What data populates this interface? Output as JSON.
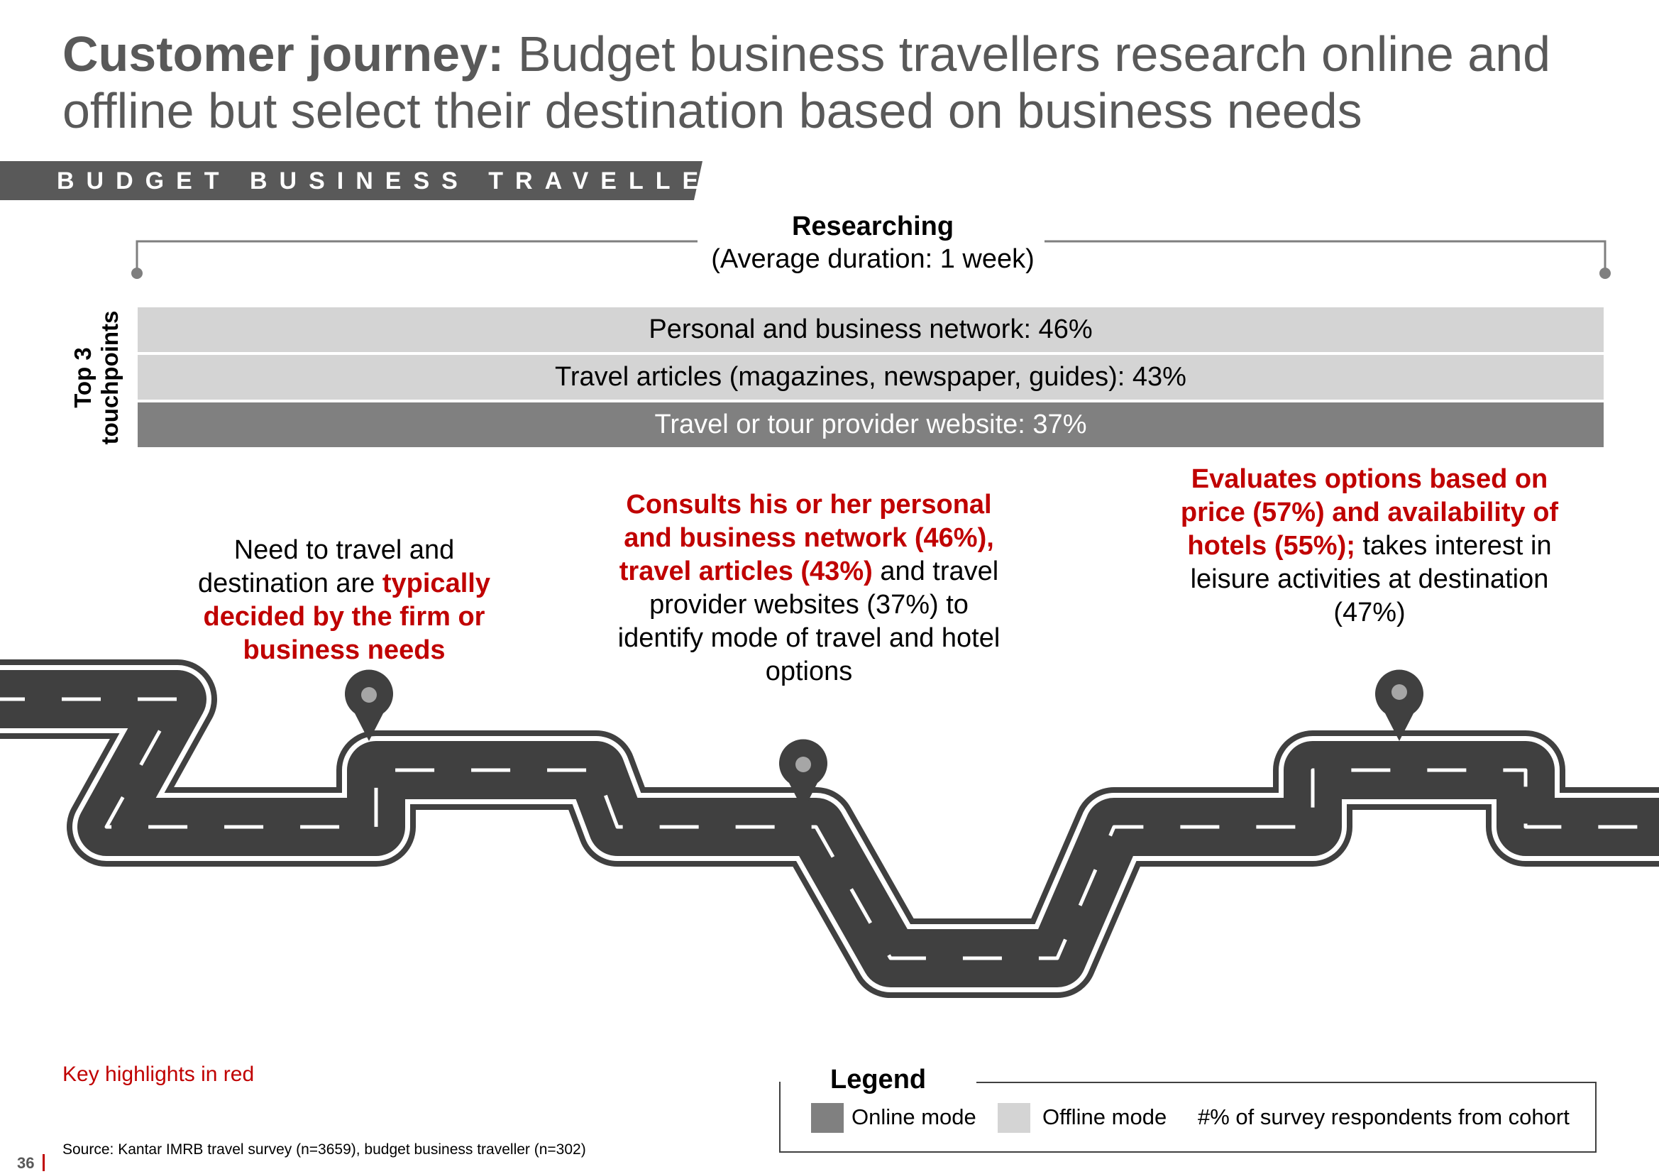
{
  "title": {
    "bold": "Customer journey:",
    "rest": " Budget business travellers research online and offline but select their destination based on business needs"
  },
  "banner": "BUDGET BUSINESS TRAVELLER",
  "phase": {
    "title": "Researching",
    "subtitle": "(Average duration: 1 week)"
  },
  "touchpoints": {
    "label_line1": "Top 3",
    "label_line2": "touchpoints",
    "items": [
      {
        "text": "Personal and business network: 46%",
        "mode": "Offline"
      },
      {
        "text": "Travel articles (magazines, newspaper, guides): 43%",
        "mode": "Offline"
      },
      {
        "text": "Travel or tour provider website: 37%",
        "mode": "Online"
      }
    ]
  },
  "steps": [
    {
      "p1": "Need to travel and destination are ",
      "p2": "typically decided by the firm or business needs",
      "p3": ""
    },
    {
      "p1": "",
      "p2": "Consults his or her personal and  business network (46%), travel articles (43%)",
      "p3": " and travel provider websites (37%) to identify mode of travel and hotel options"
    },
    {
      "p1": "",
      "p2": "Evaluates options based on price (57%) and availability of hotels (55%);",
      "p3": " takes interest in leisure activities at destination (47%)"
    }
  ],
  "key_note": "Key highlights in red",
  "source": "Source: Kantar  IMRB travel survey (n=3659), budget  business traveller  (n=302)",
  "page_number": "36",
  "legend": {
    "title": "Legend",
    "online": "Online mode",
    "offline": "Offline mode",
    "note": "#% of survey respondents from cohort"
  },
  "colors": {
    "highlight": "#c00000",
    "online": "#808080",
    "offline": "#d4d4d4",
    "road": "#404040",
    "banner": "#595959"
  },
  "icons": [
    "map-pin-icon",
    "road-illustration"
  ]
}
